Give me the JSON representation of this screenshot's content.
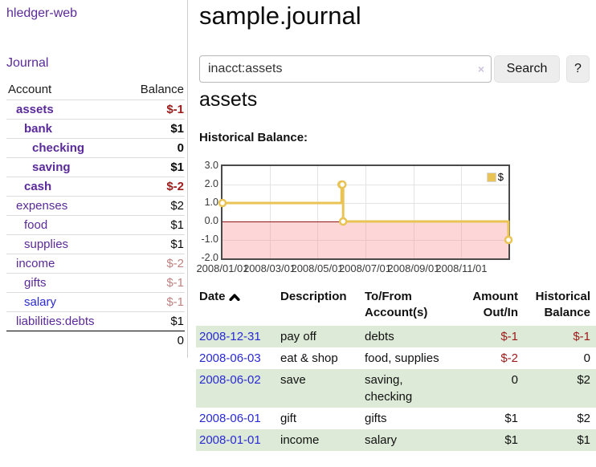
{
  "app": {
    "title": "hledger-web"
  },
  "colors": {
    "link_purple": "#5b2a9a",
    "link_blue": "#2a2ad4",
    "negative_strong": "#9d1a1a",
    "negative_soft": "#c08282",
    "row_stripe_green": "#dcead7",
    "chart_line_gold": "#e9c353",
    "zero_line_red": "#8f1414"
  },
  "sidebar": {
    "journal_label": "Journal",
    "table": {
      "account_header": "Account",
      "balance_header": "Balance",
      "rows": [
        {
          "account": "assets",
          "level": 1,
          "emphasis": true,
          "balance": "$-1"
        },
        {
          "account": "bank",
          "level": 2,
          "emphasis": true,
          "balance": "$1"
        },
        {
          "account": "checking",
          "level": 3,
          "emphasis": true,
          "balance": "0"
        },
        {
          "account": "saving",
          "level": 3,
          "emphasis": true,
          "balance": "$1"
        },
        {
          "account": "cash",
          "level": 2,
          "emphasis": true,
          "balance": "$-2"
        },
        {
          "account": "expenses",
          "level": 1,
          "emphasis": false,
          "balance": "$2"
        },
        {
          "account": "food",
          "level": 2,
          "emphasis": false,
          "balance": "$1"
        },
        {
          "account": "supplies",
          "level": 2,
          "emphasis": false,
          "balance": "$1"
        },
        {
          "account": "income",
          "level": 1,
          "emphasis": false,
          "balance": "$-2"
        },
        {
          "account": "gifts",
          "level": 2,
          "emphasis": false,
          "balance": "$-1"
        },
        {
          "account": "salary",
          "level": 2,
          "emphasis": false,
          "balance": "$-1",
          "link": "blue"
        },
        {
          "account": "liabilities:debts",
          "level": 1,
          "emphasis": false,
          "balance": "$1"
        }
      ],
      "total": "0"
    }
  },
  "main": {
    "title": "sample.journal",
    "search": {
      "value": "inacct:assets",
      "clear_icon": "×",
      "button_label": "Search",
      "help_label": "?"
    },
    "account_heading": "assets",
    "chart_label": "Historical Balance:"
  },
  "chart_data": {
    "type": "line",
    "title": "Historical Balance",
    "legend": [
      {
        "label": "$",
        "color": "#e9c353",
        "position": "top-right"
      }
    ],
    "style": "step",
    "grid": true,
    "ylim": [
      -2,
      3
    ],
    "y_tick_labels": [
      "3.0",
      "2.0",
      "1.0",
      "0.0",
      "-1.0",
      "-2.0"
    ],
    "x_tick_labels": [
      "2008/01/01",
      "2008/03/01",
      "2008/05/01",
      "2008/07/01",
      "2008/09/01",
      "2008/11/01"
    ],
    "x_range": [
      "2008-01-01",
      "2008-12-31"
    ],
    "series": [
      {
        "name": "$",
        "points": [
          [
            "2008-01-01",
            1
          ],
          [
            "2008-06-01",
            2
          ],
          [
            "2008-06-02",
            2
          ],
          [
            "2008-06-03",
            0
          ],
          [
            "2008-12-31",
            -1
          ]
        ]
      }
    ],
    "negative_region_shaded": true
  },
  "register": {
    "sort_indicator": "ascending",
    "headers": {
      "date": "Date",
      "description": "Description",
      "tofrom": "To/From Account(s)",
      "amount": "Amount Out/In",
      "balance": "Historical Balance"
    },
    "rows": [
      {
        "date": "2008-12-31",
        "description": "pay off",
        "accounts": "debts",
        "amount": "$-1",
        "balance": "$-1"
      },
      {
        "date": "2008-06-03",
        "description": "eat & shop",
        "accounts": "food, supplies",
        "amount": "$-2",
        "balance": "0"
      },
      {
        "date": "2008-06-02",
        "description": "save",
        "accounts": "saving, checking",
        "amount": "0",
        "balance": "$2"
      },
      {
        "date": "2008-06-01",
        "description": "gift",
        "accounts": "gifts",
        "amount": "$1",
        "balance": "$2"
      },
      {
        "date": "2008-01-01",
        "description": "income",
        "accounts": "salary",
        "amount": "$1",
        "balance": "$1"
      }
    ]
  }
}
